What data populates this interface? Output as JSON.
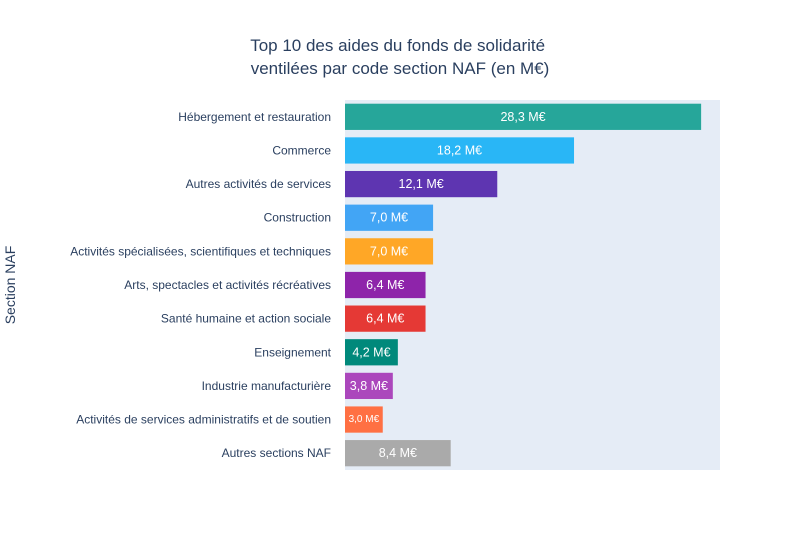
{
  "chart_data": {
    "type": "bar",
    "orientation": "horizontal",
    "title": "Top 10 des aides du fonds de solidarité ventilées par code section NAF (en M€)",
    "title_lines": [
      "Top 10 des aides du fonds de solidarité",
      "ventilées par code section NAF (en M€)"
    ],
    "xlabel": "",
    "ylabel": "Section NAF",
    "xlim": [
      0,
      29.8
    ],
    "grid": false,
    "legend": "none",
    "plot_background": "#e5ecf6",
    "categories": [
      "Hébergement et restauration",
      "Commerce",
      "Autres activités de services",
      "Construction",
      "Activités spécialisées, scientifiques et techniques",
      "Arts, spectacles et activités récréatives",
      "Santé humaine et action sociale",
      "Enseignement",
      "Industrie manufacturière",
      "Activités de services administratifs et de soutien",
      "Autres sections NAF"
    ],
    "values": [
      28.3,
      18.2,
      12.1,
      7.0,
      7.0,
      6.4,
      6.4,
      4.2,
      3.8,
      3.0,
      8.4
    ],
    "data_labels": [
      "28,3 M€",
      "18,2 M€",
      "12,1 M€",
      "7,0 M€",
      "7,0 M€",
      "6,4 M€",
      "6,4 M€",
      "4,2 M€",
      "3,8 M€",
      "3,0 M€",
      "8,4 M€"
    ],
    "colors": [
      "#26a69a",
      "#29b6f6",
      "#5e35b1",
      "#42a5f5",
      "#ffa726",
      "#8e24aa",
      "#e53935",
      "#00897b",
      "#ab47bc",
      "#ff7043",
      "#aaaaaa"
    ]
  }
}
